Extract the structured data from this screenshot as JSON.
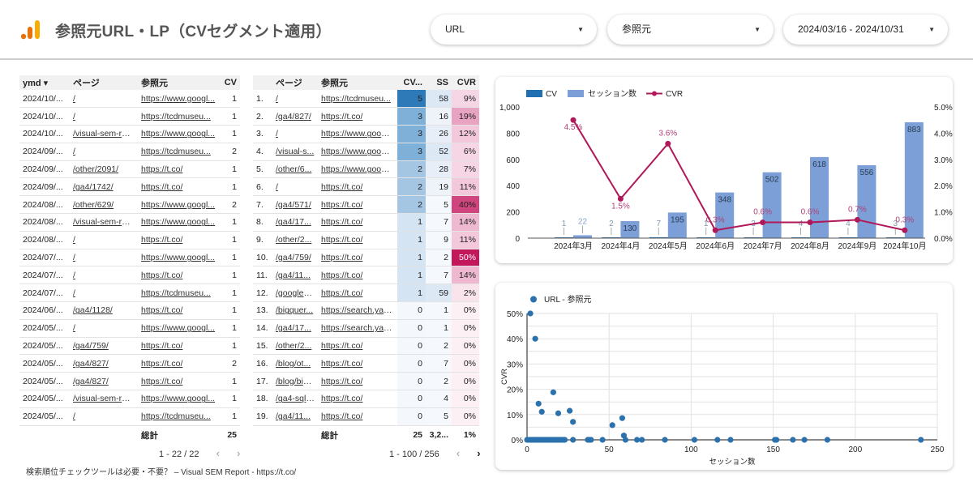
{
  "header": {
    "title": "参照元URL・LP（CVセグメント適用）",
    "logo": "analytics-bars-icon",
    "dropdowns": [
      {
        "label": "URL",
        "icon": "caret-down-icon"
      },
      {
        "label": "参照元",
        "icon": "caret-down-icon"
      },
      {
        "label": "2024/03/16 - 2024/10/31",
        "icon": "caret-down-icon"
      }
    ]
  },
  "table1": {
    "columns": [
      "ymd ▾",
      "ページ",
      "参照元",
      "CV"
    ],
    "rows": [
      [
        "2024/10/...",
        "/",
        "https://www.googl...",
        "1"
      ],
      [
        "2024/10/...",
        "/",
        "https://tcdmuseu...",
        "1"
      ],
      [
        "2024/10/...",
        "/visual-sem-rep...",
        "https://www.googl...",
        "1"
      ],
      [
        "2024/09/...",
        "/",
        "https://tcdmuseu...",
        "2"
      ],
      [
        "2024/09/...",
        "/other/2091/",
        "https://t.co/",
        "1"
      ],
      [
        "2024/09/...",
        "/ga4/1742/",
        "https://t.co/",
        "1"
      ],
      [
        "2024/08/...",
        "/other/629/",
        "https://www.googl...",
        "2"
      ],
      [
        "2024/08/...",
        "/visual-sem-rep...",
        "https://www.googl...",
        "1"
      ],
      [
        "2024/08/...",
        "/",
        "https://t.co/",
        "1"
      ],
      [
        "2024/07/...",
        "/",
        "https://www.googl...",
        "1"
      ],
      [
        "2024/07/...",
        "/",
        "https://t.co/",
        "1"
      ],
      [
        "2024/07/...",
        "/",
        "https://tcdmuseu...",
        "1"
      ],
      [
        "2024/06/...",
        "/ga4/1128/",
        "https://t.co/",
        "1"
      ],
      [
        "2024/05/...",
        "/",
        "https://www.googl...",
        "1"
      ],
      [
        "2024/05/...",
        "/ga4/759/",
        "https://t.co/",
        "1"
      ],
      [
        "2024/05/...",
        "/ga4/827/",
        "https://t.co/",
        "2"
      ],
      [
        "2024/05/...",
        "/ga4/827/",
        "https://t.co/",
        "1"
      ],
      [
        "2024/05/...",
        "/visual-sem-rep...",
        "https://www.googl...",
        "1"
      ],
      [
        "2024/05/...",
        "/",
        "https://tcdmuseu...",
        "1"
      ]
    ],
    "total_label": "総計",
    "total_cv": "25",
    "pagination": "1 - 22 / 22",
    "prev_icon": "‹",
    "next_icon": "›"
  },
  "table2": {
    "columns": [
      "",
      "ページ",
      "参照元",
      "CV...",
      "SS",
      "CVR"
    ],
    "rows": [
      [
        "1.",
        "/",
        "https://tcdmuseu...",
        "5",
        "58",
        "9%"
      ],
      [
        "2.",
        "/ga4/827/",
        "https://t.co/",
        "3",
        "16",
        "19%"
      ],
      [
        "3.",
        "/",
        "https://www.googl...",
        "3",
        "26",
        "12%"
      ],
      [
        "4.",
        "/visual-s...",
        "https://www.googl...",
        "3",
        "52",
        "6%"
      ],
      [
        "5.",
        "/other/6...",
        "https://www.googl...",
        "2",
        "28",
        "7%"
      ],
      [
        "6.",
        "/",
        "https://t.co/",
        "2",
        "19",
        "11%"
      ],
      [
        "7.",
        "/ga4/571/",
        "https://t.co/",
        "2",
        "5",
        "40%"
      ],
      [
        "8.",
        "/ga4/17...",
        "https://t.co/",
        "1",
        "7",
        "14%"
      ],
      [
        "9.",
        "/other/2...",
        "https://t.co/",
        "1",
        "9",
        "11%"
      ],
      [
        "10.",
        "/ga4/759/",
        "https://t.co/",
        "1",
        "2",
        "50%"
      ],
      [
        "11.",
        "/ga4/11...",
        "https://t.co/",
        "1",
        "7",
        "14%"
      ],
      [
        "12.",
        "/googlea...",
        "https://t.co/",
        "1",
        "59",
        "2%"
      ],
      [
        "13.",
        "/bigquer...",
        "https://search.yah...",
        "0",
        "1",
        "0%"
      ],
      [
        "14.",
        "/ga4/17...",
        "https://search.yah...",
        "0",
        "1",
        "0%"
      ],
      [
        "15.",
        "/other/2...",
        "https://t.co/",
        "0",
        "2",
        "0%"
      ],
      [
        "16.",
        "/blog/ot...",
        "https://t.co/",
        "0",
        "7",
        "0%"
      ],
      [
        "17.",
        "/blog/big...",
        "https://t.co/",
        "0",
        "2",
        "0%"
      ],
      [
        "18.",
        "/ga4-sql-...",
        "https://t.co/",
        "0",
        "4",
        "0%"
      ],
      [
        "19.",
        "/ga4/11...",
        "https://t.co/",
        "0",
        "5",
        "0%"
      ]
    ],
    "total_label": "総計",
    "total_cv": "25",
    "total_ss": "3,2...",
    "total_cvr": "1%",
    "pagination": "1 - 100 / 256",
    "prev_icon": "‹",
    "next_icon": "›"
  },
  "footer": {
    "text": "検索順位チェックツールは必要・不要？ – Visual SEM Report - https://t.co/"
  },
  "colors": {
    "cv_bar": "#1f6fb2",
    "session_bar": "#7b9fd6",
    "cvr_line": "#b0185a",
    "scatter_point": "#2a71ad"
  },
  "chart_data": [
    {
      "type": "bar+line",
      "title": "",
      "legend": [
        "CV",
        "セッション数",
        "CVR"
      ],
      "legend_position": "top-left",
      "categories": [
        "2024年3月",
        "2024年4月",
        "2024年5月",
        "2024年6月",
        "2024年7月",
        "2024年8月",
        "2024年9月",
        "2024年10月"
      ],
      "series": [
        {
          "name": "CV",
          "type": "bar",
          "axis": "left",
          "values": [
            1,
            2,
            7,
            1,
            3,
            4,
            4,
            3
          ]
        },
        {
          "name": "セッション数",
          "type": "bar",
          "axis": "left",
          "values": [
            22,
            130,
            195,
            348,
            502,
            618,
            556,
            883
          ]
        },
        {
          "name": "CVR",
          "type": "line",
          "axis": "right",
          "values": [
            4.5,
            1.5,
            3.6,
            0.3,
            0.6,
            0.6,
            0.7,
            0.3
          ],
          "labels": [
            "4.5%",
            "1.5%",
            "3.6%",
            "0.3%",
            "0.6%",
            "0.6%",
            "0.7%",
            "0.3%"
          ]
        }
      ],
      "y_left": {
        "ticks": [
          "0",
          "200",
          "400",
          "600",
          "800",
          "1,000"
        ],
        "range": [
          0,
          1000
        ]
      },
      "y_right": {
        "ticks": [
          "0.0%",
          "1.0%",
          "2.0%",
          "3.0%",
          "4.0%",
          "5.0%"
        ],
        "range": [
          0,
          5
        ]
      },
      "grid": false
    },
    {
      "type": "scatter",
      "title": "",
      "legend": [
        "URL - 参照元"
      ],
      "legend_position": "top-left",
      "xlabel": "セッション数",
      "ylabel": "CVR",
      "x_ticks": [
        "0",
        "50",
        "100",
        "150",
        "200",
        "250"
      ],
      "y_ticks": [
        "0%",
        "10%",
        "20%",
        "30%",
        "40%",
        "50%"
      ],
      "xlim": [
        0,
        250
      ],
      "ylim": [
        0,
        50
      ],
      "grid": true,
      "points": [
        [
          2,
          50
        ],
        [
          5,
          40
        ],
        [
          7,
          14.3
        ],
        [
          9,
          11.1
        ],
        [
          16,
          18.8
        ],
        [
          19,
          10.5
        ],
        [
          26,
          11.5
        ],
        [
          28,
          7.1
        ],
        [
          52,
          5.8
        ],
        [
          58,
          8.6
        ],
        [
          59,
          1.7
        ],
        [
          0,
          0
        ],
        [
          1,
          0
        ],
        [
          2,
          0
        ],
        [
          3,
          0
        ],
        [
          4,
          0
        ],
        [
          5,
          0
        ],
        [
          6,
          0
        ],
        [
          7,
          0
        ],
        [
          8,
          0
        ],
        [
          9,
          0
        ],
        [
          10,
          0
        ],
        [
          11,
          0
        ],
        [
          12,
          0
        ],
        [
          13,
          0
        ],
        [
          14,
          0
        ],
        [
          15,
          0
        ],
        [
          16,
          0
        ],
        [
          17,
          0
        ],
        [
          18,
          0
        ],
        [
          19,
          0
        ],
        [
          20,
          0
        ],
        [
          21,
          0
        ],
        [
          22,
          0
        ],
        [
          23,
          0
        ],
        [
          28,
          0
        ],
        [
          37,
          0
        ],
        [
          38,
          0
        ],
        [
          39,
          0
        ],
        [
          46,
          0
        ],
        [
          60,
          0
        ],
        [
          67,
          0
        ],
        [
          70,
          0
        ],
        [
          84,
          0
        ],
        [
          102,
          0
        ],
        [
          116,
          0
        ],
        [
          124,
          0
        ],
        [
          151,
          0
        ],
        [
          152,
          0
        ],
        [
          162,
          0
        ],
        [
          169,
          0
        ],
        [
          183,
          0
        ],
        [
          240,
          0
        ]
      ]
    }
  ]
}
